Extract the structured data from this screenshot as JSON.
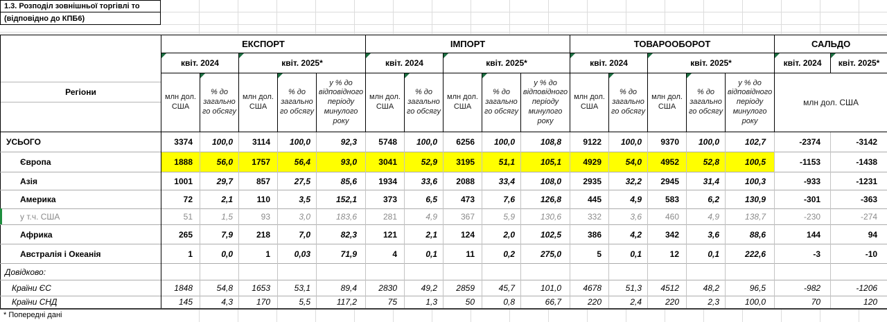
{
  "title": {
    "line1": "1.3. Розподіл зовнішньої торгівлі то",
    "line2": "(відповідно до КПБ6)"
  },
  "footnote": "* Попередні дані",
  "colors": {
    "highlight_row": "#ffff00",
    "note_marker": "#1d6f42",
    "active_row_marker": "#1e8e3e"
  },
  "table": {
    "region_header": "Регіони",
    "groups": {
      "export": "ЕКСПОРТ",
      "import": "ІМПОРТ",
      "turnover": "ТОВАРООБОРОТ",
      "balance": "САЛЬДО"
    },
    "period_2024": "квіт. 2024",
    "period_2025": "квіт. 2025*",
    "subheaders": {
      "mln": "млн дол. США",
      "pct": "% до загального обсягу",
      "yoy": "у % до відповідного періоду минулого року",
      "balance_unit": "млн дол. США"
    },
    "rows": [
      {
        "label": "УСЬОГО",
        "kind": "total",
        "highlight": false,
        "values": [
          "3374",
          "100,0",
          "3114",
          "100,0",
          "92,3",
          "5748",
          "100,0",
          "6256",
          "100,0",
          "108,8",
          "9122",
          "100,0",
          "9370",
          "100,0",
          "102,7",
          "-2374",
          "-3142"
        ]
      },
      {
        "label": "Європа",
        "kind": "region",
        "highlight": true,
        "values": [
          "1888",
          "56,0",
          "1757",
          "56,4",
          "93,0",
          "3041",
          "52,9",
          "3195",
          "51,1",
          "105,1",
          "4929",
          "54,0",
          "4952",
          "52,8",
          "100,5",
          "-1153",
          "-1438"
        ]
      },
      {
        "label": "Азія",
        "kind": "region",
        "highlight": false,
        "values": [
          "1001",
          "29,7",
          "857",
          "27,5",
          "85,6",
          "1934",
          "33,6",
          "2088",
          "33,4",
          "108,0",
          "2935",
          "32,2",
          "2945",
          "31,4",
          "100,3",
          "-933",
          "-1231"
        ]
      },
      {
        "label": "Америка",
        "kind": "region",
        "highlight": false,
        "values": [
          "72",
          "2,1",
          "110",
          "3,5",
          "152,1",
          "373",
          "6,5",
          "473",
          "7,6",
          "126,8",
          "445",
          "4,9",
          "583",
          "6,2",
          "130,9",
          "-301",
          "-363"
        ]
      },
      {
        "label": "у т.ч. США",
        "kind": "sub",
        "highlight": false,
        "values": [
          "51",
          "1,5",
          "93",
          "3,0",
          "183,6",
          "281",
          "4,9",
          "367",
          "5,9",
          "130,6",
          "332",
          "3,6",
          "460",
          "4,9",
          "138,7",
          "-230",
          "-274"
        ]
      },
      {
        "label": "Африка",
        "kind": "region",
        "highlight": false,
        "values": [
          "265",
          "7,9",
          "218",
          "7,0",
          "82,3",
          "121",
          "2,1",
          "124",
          "2,0",
          "102,5",
          "386",
          "4,2",
          "342",
          "3,6",
          "88,6",
          "144",
          "94"
        ]
      },
      {
        "label": "Австралія і Океанія",
        "kind": "region",
        "highlight": false,
        "values": [
          "1",
          "0,0",
          "1",
          "0,03",
          "71,9",
          "4",
          "0,1",
          "11",
          "0,2",
          "275,0",
          "5",
          "0,1",
          "12",
          "0,1",
          "222,6",
          "-3",
          "-10"
        ]
      },
      {
        "label": "Довідково:",
        "kind": "note",
        "highlight": false,
        "values": [
          "",
          "",
          "",
          "",
          "",
          "",
          "",
          "",
          "",
          "",
          "",
          "",
          "",
          "",
          "",
          "",
          ""
        ]
      },
      {
        "label": "Країни ЄС",
        "kind": "ref",
        "highlight": false,
        "values": [
          "1848",
          "54,8",
          "1653",
          "53,1",
          "89,4",
          "2830",
          "49,2",
          "2859",
          "45,7",
          "101,0",
          "4678",
          "51,3",
          "4512",
          "48,2",
          "96,5",
          "-982",
          "-1206"
        ]
      },
      {
        "label": "Країни СНД",
        "kind": "ref",
        "highlight": false,
        "values": [
          "145",
          "4,3",
          "170",
          "5,5",
          "117,2",
          "75",
          "1,3",
          "50",
          "0,8",
          "66,7",
          "220",
          "2,4",
          "220",
          "2,3",
          "100,0",
          "70",
          "120"
        ]
      }
    ]
  }
}
